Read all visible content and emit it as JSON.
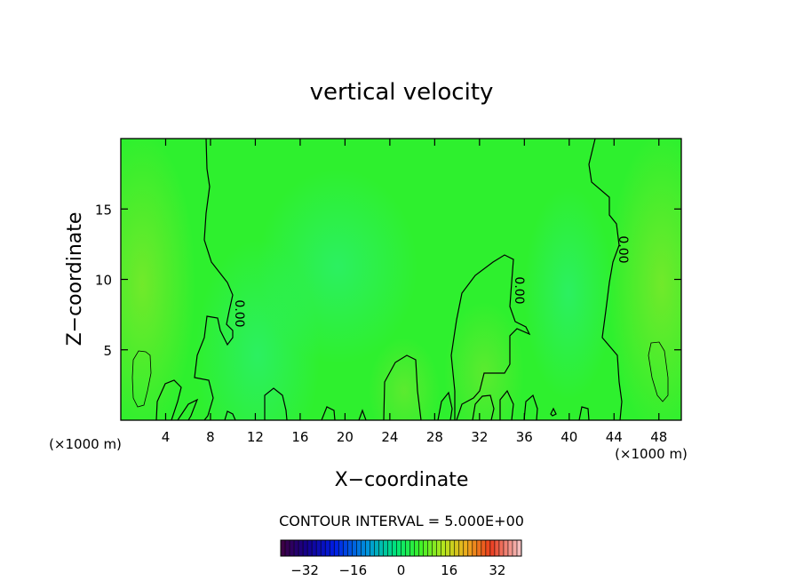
{
  "chart_data": {
    "type": "heatmap",
    "title": "vertical velocity",
    "xlabel": "X−coordinate",
    "ylabel": "Z−coordinate",
    "x_unit_left": "(×1000 m)",
    "x_unit_right": "(×1000 m)",
    "xlim": [
      0,
      50
    ],
    "ylim": [
      0,
      20
    ],
    "xticks": [
      4,
      8,
      12,
      16,
      20,
      24,
      28,
      32,
      36,
      40,
      44,
      48
    ],
    "yticks": [
      5,
      10,
      15
    ],
    "contour_interval_label": "CONTOUR INTERVAL = 5.000E+00",
    "contour_labels": [
      "0.00",
      "0.00",
      "0.00"
    ],
    "colorbar": {
      "ticks": [
        -32,
        -16,
        0,
        16,
        32
      ],
      "tick_labels": [
        "−32",
        "−16",
        "0",
        "16",
        "32"
      ],
      "range": [
        -40,
        40
      ]
    },
    "field_color": "#2ef02e",
    "contour_color": "#000000"
  }
}
